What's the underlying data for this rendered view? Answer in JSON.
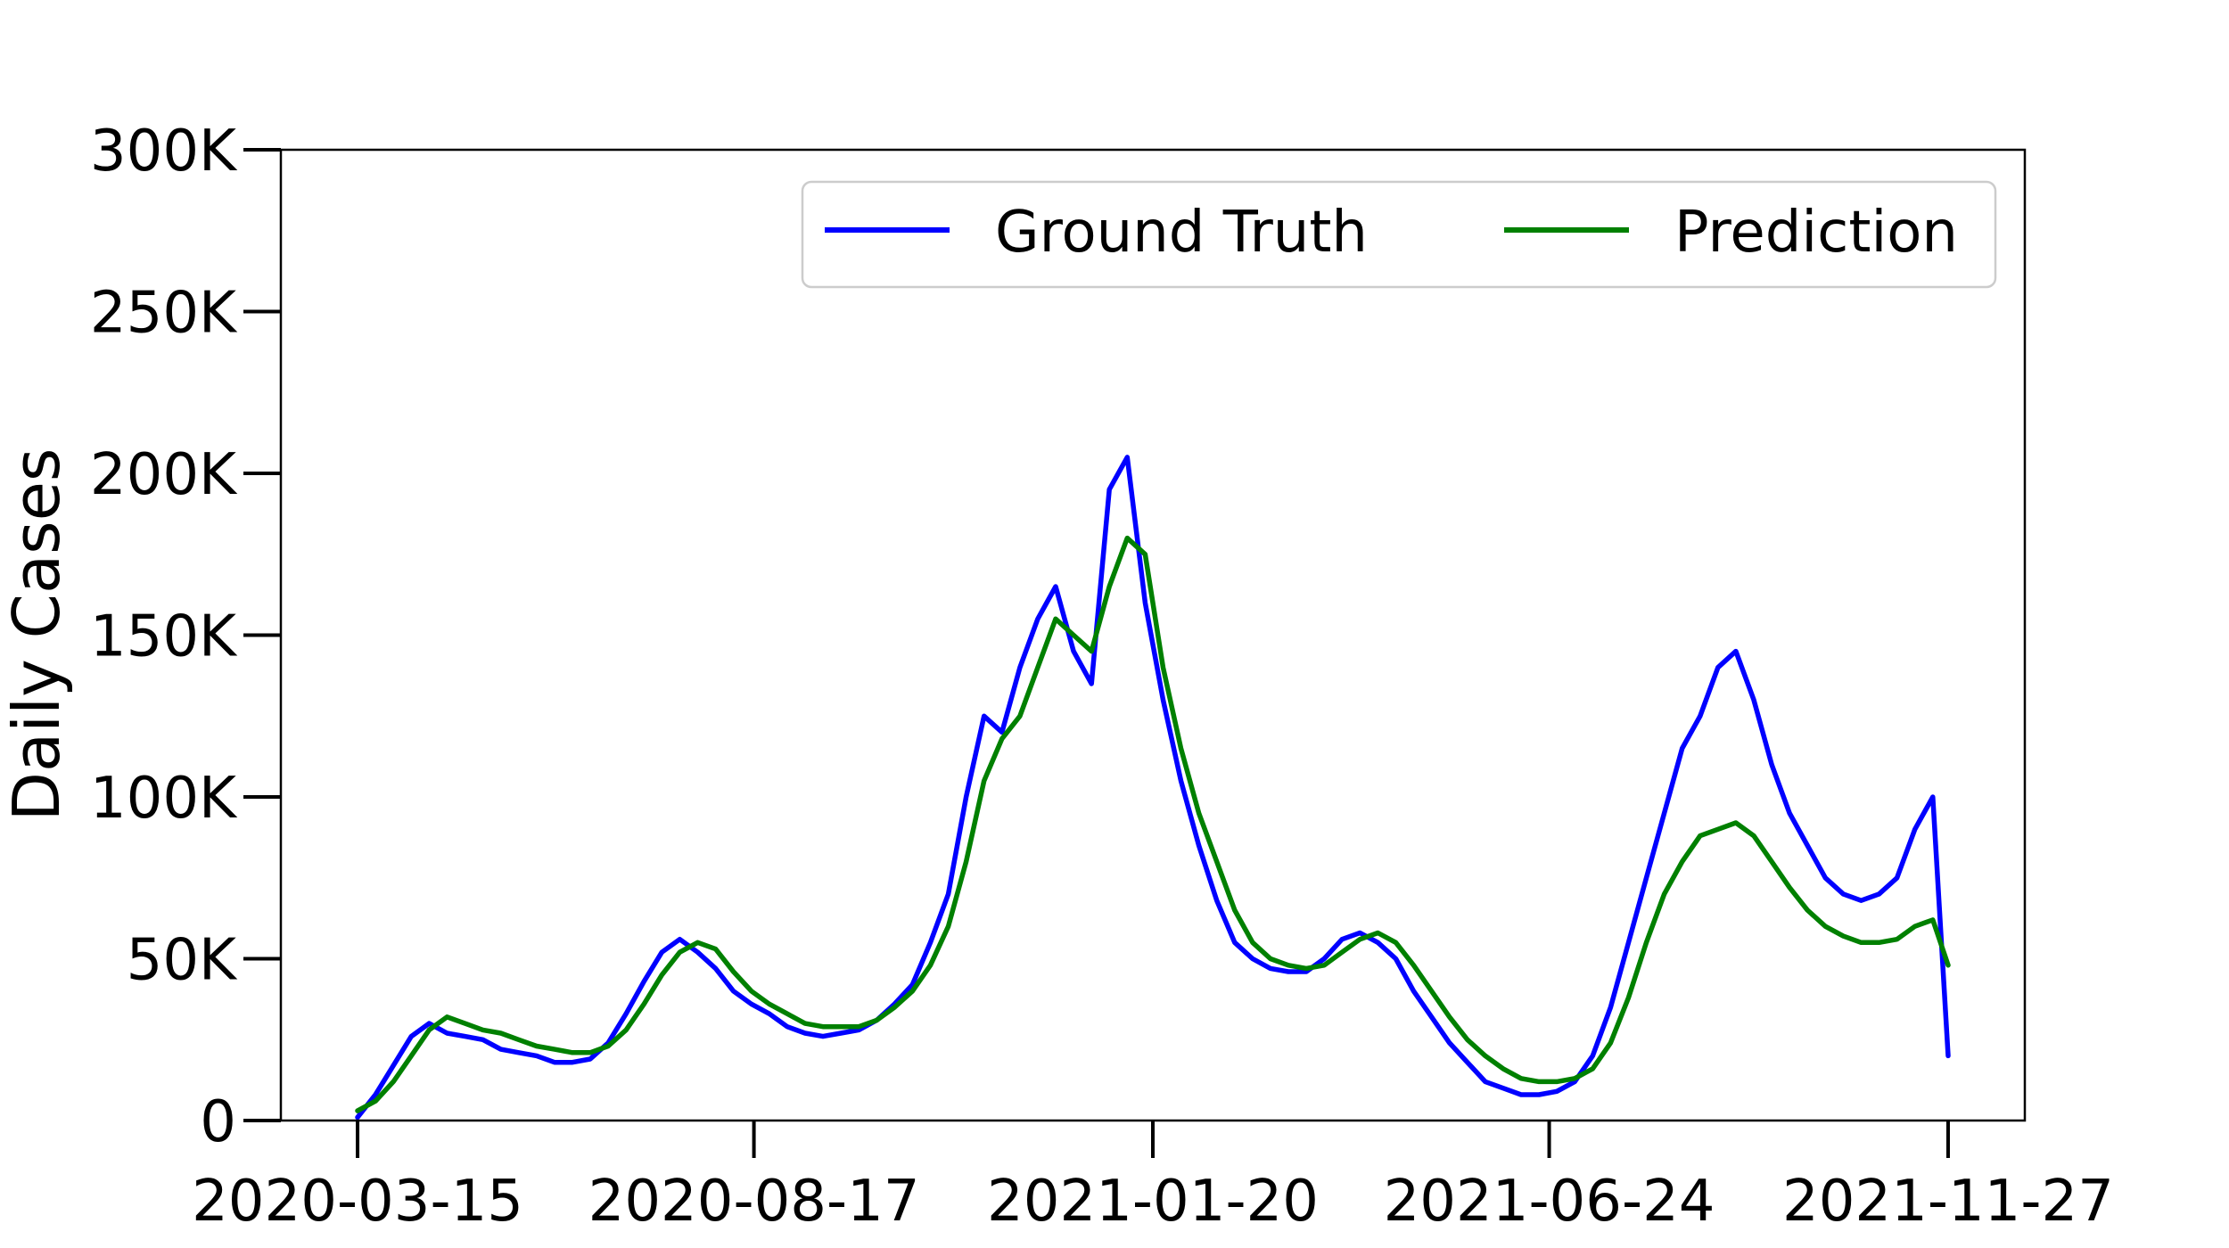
{
  "chart_data": {
    "type": "line",
    "title": "",
    "xlabel": "",
    "ylabel": "Daily Cases",
    "x_ticks": [
      "2020-03-15",
      "2020-08-17",
      "2021-01-20",
      "2021-06-24",
      "2021-11-27"
    ],
    "y_ticks": [
      "0",
      "50K",
      "100K",
      "150K",
      "200K",
      "250K",
      "300K"
    ],
    "y_tick_values": [
      0,
      50000,
      100000,
      150000,
      200000,
      250000,
      300000
    ],
    "xlim": [
      "2020-02-14",
      "2021-12-27"
    ],
    "ylim": [
      0,
      300000
    ],
    "grid": false,
    "legend_position": "top-right",
    "series": [
      {
        "name": "Ground Truth",
        "color": "#0000ff",
        "points": [
          [
            "2020-03-15",
            1000
          ],
          [
            "2020-03-22",
            8000
          ],
          [
            "2020-03-29",
            17000
          ],
          [
            "2020-04-05",
            26000
          ],
          [
            "2020-04-12",
            30000
          ],
          [
            "2020-04-19",
            27000
          ],
          [
            "2020-04-26",
            26000
          ],
          [
            "2020-05-03",
            25000
          ],
          [
            "2020-05-10",
            22000
          ],
          [
            "2020-05-17",
            21000
          ],
          [
            "2020-05-24",
            20000
          ],
          [
            "2020-05-31",
            18000
          ],
          [
            "2020-06-07",
            18000
          ],
          [
            "2020-06-14",
            19000
          ],
          [
            "2020-06-21",
            24000
          ],
          [
            "2020-06-28",
            33000
          ],
          [
            "2020-07-05",
            43000
          ],
          [
            "2020-07-12",
            52000
          ],
          [
            "2020-07-19",
            56000
          ],
          [
            "2020-07-26",
            52000
          ],
          [
            "2020-08-02",
            47000
          ],
          [
            "2020-08-09",
            40000
          ],
          [
            "2020-08-16",
            36000
          ],
          [
            "2020-08-23",
            33000
          ],
          [
            "2020-08-30",
            29000
          ],
          [
            "2020-09-06",
            27000
          ],
          [
            "2020-09-13",
            26000
          ],
          [
            "2020-09-20",
            27000
          ],
          [
            "2020-09-27",
            28000
          ],
          [
            "2020-10-04",
            31000
          ],
          [
            "2020-10-11",
            36000
          ],
          [
            "2020-10-18",
            42000
          ],
          [
            "2020-10-25",
            55000
          ],
          [
            "2020-11-01",
            70000
          ],
          [
            "2020-11-08",
            100000
          ],
          [
            "2020-11-15",
            125000
          ],
          [
            "2020-11-22",
            120000
          ],
          [
            "2020-11-29",
            140000
          ],
          [
            "2020-12-06",
            155000
          ],
          [
            "2020-12-13",
            165000
          ],
          [
            "2020-12-20",
            145000
          ],
          [
            "2020-12-27",
            135000
          ],
          [
            "2021-01-03",
            195000
          ],
          [
            "2021-01-10",
            205000
          ],
          [
            "2021-01-17",
            160000
          ],
          [
            "2021-01-24",
            130000
          ],
          [
            "2021-01-31",
            105000
          ],
          [
            "2021-02-07",
            85000
          ],
          [
            "2021-02-14",
            68000
          ],
          [
            "2021-02-21",
            55000
          ],
          [
            "2021-02-28",
            50000
          ],
          [
            "2021-03-07",
            47000
          ],
          [
            "2021-03-14",
            46000
          ],
          [
            "2021-03-21",
            46000
          ],
          [
            "2021-03-28",
            50000
          ],
          [
            "2021-04-04",
            56000
          ],
          [
            "2021-04-11",
            58000
          ],
          [
            "2021-04-18",
            55000
          ],
          [
            "2021-04-25",
            50000
          ],
          [
            "2021-05-02",
            40000
          ],
          [
            "2021-05-09",
            32000
          ],
          [
            "2021-05-16",
            24000
          ],
          [
            "2021-05-23",
            18000
          ],
          [
            "2021-05-30",
            12000
          ],
          [
            "2021-06-06",
            10000
          ],
          [
            "2021-06-13",
            8000
          ],
          [
            "2021-06-20",
            8000
          ],
          [
            "2021-06-27",
            9000
          ],
          [
            "2021-07-04",
            12000
          ],
          [
            "2021-07-11",
            20000
          ],
          [
            "2021-07-18",
            35000
          ],
          [
            "2021-07-25",
            55000
          ],
          [
            "2021-08-01",
            75000
          ],
          [
            "2021-08-08",
            95000
          ],
          [
            "2021-08-15",
            115000
          ],
          [
            "2021-08-22",
            125000
          ],
          [
            "2021-08-29",
            140000
          ],
          [
            "2021-09-05",
            145000
          ],
          [
            "2021-09-12",
            130000
          ],
          [
            "2021-09-19",
            110000
          ],
          [
            "2021-09-26",
            95000
          ],
          [
            "2021-10-03",
            85000
          ],
          [
            "2021-10-10",
            75000
          ],
          [
            "2021-10-17",
            70000
          ],
          [
            "2021-10-24",
            68000
          ],
          [
            "2021-10-31",
            70000
          ],
          [
            "2021-11-07",
            75000
          ],
          [
            "2021-11-14",
            90000
          ],
          [
            "2021-11-21",
            100000
          ],
          [
            "2021-11-27",
            20000
          ]
        ]
      },
      {
        "name": "Prediction",
        "color": "#008000",
        "points": [
          [
            "2020-03-15",
            3000
          ],
          [
            "2020-03-22",
            6000
          ],
          [
            "2020-03-29",
            12000
          ],
          [
            "2020-04-05",
            20000
          ],
          [
            "2020-04-12",
            28000
          ],
          [
            "2020-04-19",
            32000
          ],
          [
            "2020-04-26",
            30000
          ],
          [
            "2020-05-03",
            28000
          ],
          [
            "2020-05-10",
            27000
          ],
          [
            "2020-05-17",
            25000
          ],
          [
            "2020-05-24",
            23000
          ],
          [
            "2020-05-31",
            22000
          ],
          [
            "2020-06-07",
            21000
          ],
          [
            "2020-06-14",
            21000
          ],
          [
            "2020-06-21",
            23000
          ],
          [
            "2020-06-28",
            28000
          ],
          [
            "2020-07-05",
            36000
          ],
          [
            "2020-07-12",
            45000
          ],
          [
            "2020-07-19",
            52000
          ],
          [
            "2020-07-26",
            55000
          ],
          [
            "2020-08-02",
            53000
          ],
          [
            "2020-08-09",
            46000
          ],
          [
            "2020-08-16",
            40000
          ],
          [
            "2020-08-23",
            36000
          ],
          [
            "2020-08-30",
            33000
          ],
          [
            "2020-09-06",
            30000
          ],
          [
            "2020-09-13",
            29000
          ],
          [
            "2020-09-20",
            29000
          ],
          [
            "2020-09-27",
            29000
          ],
          [
            "2020-10-04",
            31000
          ],
          [
            "2020-10-11",
            35000
          ],
          [
            "2020-10-18",
            40000
          ],
          [
            "2020-10-25",
            48000
          ],
          [
            "2020-11-01",
            60000
          ],
          [
            "2020-11-08",
            80000
          ],
          [
            "2020-11-15",
            105000
          ],
          [
            "2020-11-22",
            118000
          ],
          [
            "2020-11-29",
            125000
          ],
          [
            "2020-12-06",
            140000
          ],
          [
            "2020-12-13",
            155000
          ],
          [
            "2020-12-20",
            150000
          ],
          [
            "2020-12-27",
            145000
          ],
          [
            "2021-01-03",
            165000
          ],
          [
            "2021-01-10",
            180000
          ],
          [
            "2021-01-17",
            175000
          ],
          [
            "2021-01-24",
            140000
          ],
          [
            "2021-01-31",
            115000
          ],
          [
            "2021-02-07",
            95000
          ],
          [
            "2021-02-14",
            80000
          ],
          [
            "2021-02-21",
            65000
          ],
          [
            "2021-02-28",
            55000
          ],
          [
            "2021-03-07",
            50000
          ],
          [
            "2021-03-14",
            48000
          ],
          [
            "2021-03-21",
            47000
          ],
          [
            "2021-03-28",
            48000
          ],
          [
            "2021-04-04",
            52000
          ],
          [
            "2021-04-11",
            56000
          ],
          [
            "2021-04-18",
            58000
          ],
          [
            "2021-04-25",
            55000
          ],
          [
            "2021-05-02",
            48000
          ],
          [
            "2021-05-09",
            40000
          ],
          [
            "2021-05-16",
            32000
          ],
          [
            "2021-05-23",
            25000
          ],
          [
            "2021-05-30",
            20000
          ],
          [
            "2021-06-06",
            16000
          ],
          [
            "2021-06-13",
            13000
          ],
          [
            "2021-06-20",
            12000
          ],
          [
            "2021-06-27",
            12000
          ],
          [
            "2021-07-04",
            13000
          ],
          [
            "2021-07-11",
            16000
          ],
          [
            "2021-07-18",
            24000
          ],
          [
            "2021-07-25",
            38000
          ],
          [
            "2021-08-01",
            55000
          ],
          [
            "2021-08-08",
            70000
          ],
          [
            "2021-08-15",
            80000
          ],
          [
            "2021-08-22",
            88000
          ],
          [
            "2021-08-29",
            90000
          ],
          [
            "2021-09-05",
            92000
          ],
          [
            "2021-09-12",
            88000
          ],
          [
            "2021-09-19",
            80000
          ],
          [
            "2021-09-26",
            72000
          ],
          [
            "2021-10-03",
            65000
          ],
          [
            "2021-10-10",
            60000
          ],
          [
            "2021-10-17",
            57000
          ],
          [
            "2021-10-24",
            55000
          ],
          [
            "2021-10-31",
            55000
          ],
          [
            "2021-11-07",
            56000
          ],
          [
            "2021-11-14",
            60000
          ],
          [
            "2021-11-21",
            62000
          ],
          [
            "2021-11-27",
            48000
          ]
        ]
      }
    ]
  }
}
